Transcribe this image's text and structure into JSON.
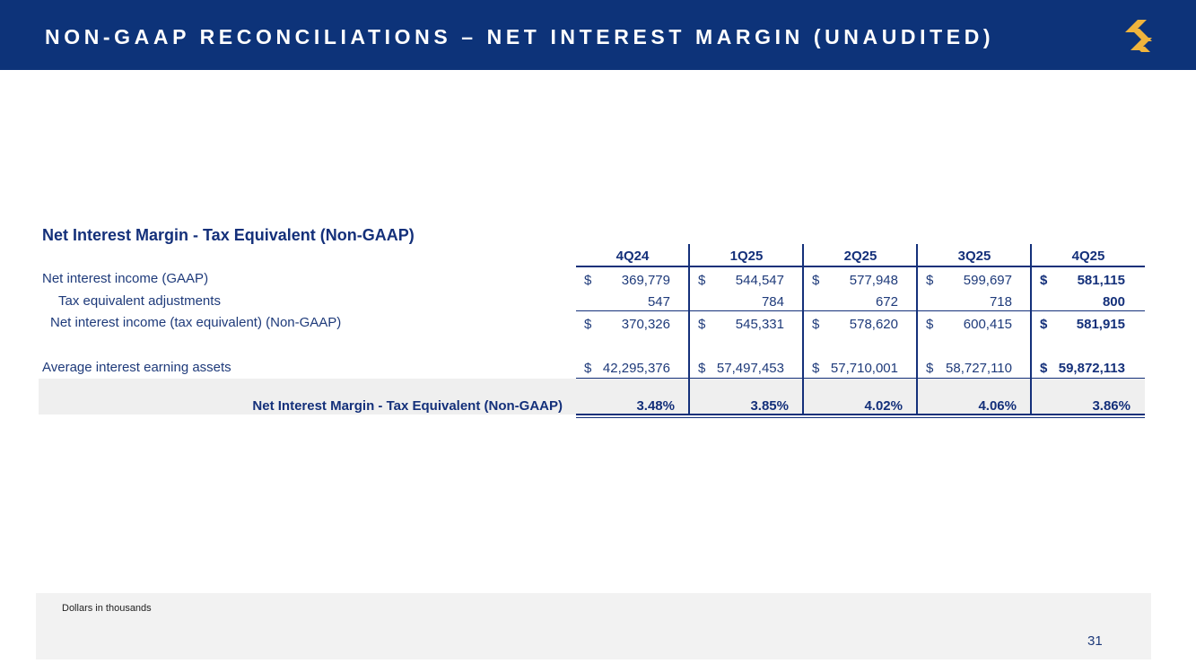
{
  "header": {
    "title": "NON-GAAP RECONCILIATIONS – NET INTEREST MARGIN (UNAUDITED)",
    "logo_icon": "company-logo-icon",
    "background_color": "#0d3379",
    "logo_color": "#f0b43c"
  },
  "table": {
    "title": "Net Interest Margin - Tax Equivalent (Non-GAAP)",
    "columns": [
      "4Q24",
      "1Q25",
      "2Q25",
      "3Q25",
      "4Q25"
    ],
    "rows": [
      {
        "label": "Net interest income (GAAP)",
        "dollar": [
          "$",
          "$",
          "$",
          "$",
          "$"
        ],
        "values": [
          "369,779",
          "544,547",
          "577,948",
          "599,697",
          "581,115"
        ]
      },
      {
        "label": "Tax equivalent adjustments",
        "values": [
          "547",
          "784",
          "672",
          "718",
          "800"
        ]
      },
      {
        "label": "Net interest income (tax equivalent) (Non-GAAP)",
        "dollar": [
          "$",
          "$",
          "$",
          "$",
          "$"
        ],
        "values": [
          "370,326",
          "545,331",
          "578,620",
          "600,415",
          "581,915"
        ]
      },
      {
        "label": "Average interest earning assets",
        "dollar": [
          "$",
          "$",
          "$",
          "$",
          "$"
        ],
        "values": [
          "42,295,376",
          "57,497,453",
          "57,710,001",
          "58,727,110",
          "59,872,113"
        ]
      },
      {
        "label": "Net Interest Margin - Tax Equivalent (Non-GAAP)",
        "values": [
          "3.48%",
          "3.85%",
          "4.02%",
          "4.06%",
          "3.86%"
        ]
      }
    ]
  },
  "footer": {
    "note": "Dollars in thousands",
    "page_number": "31"
  }
}
